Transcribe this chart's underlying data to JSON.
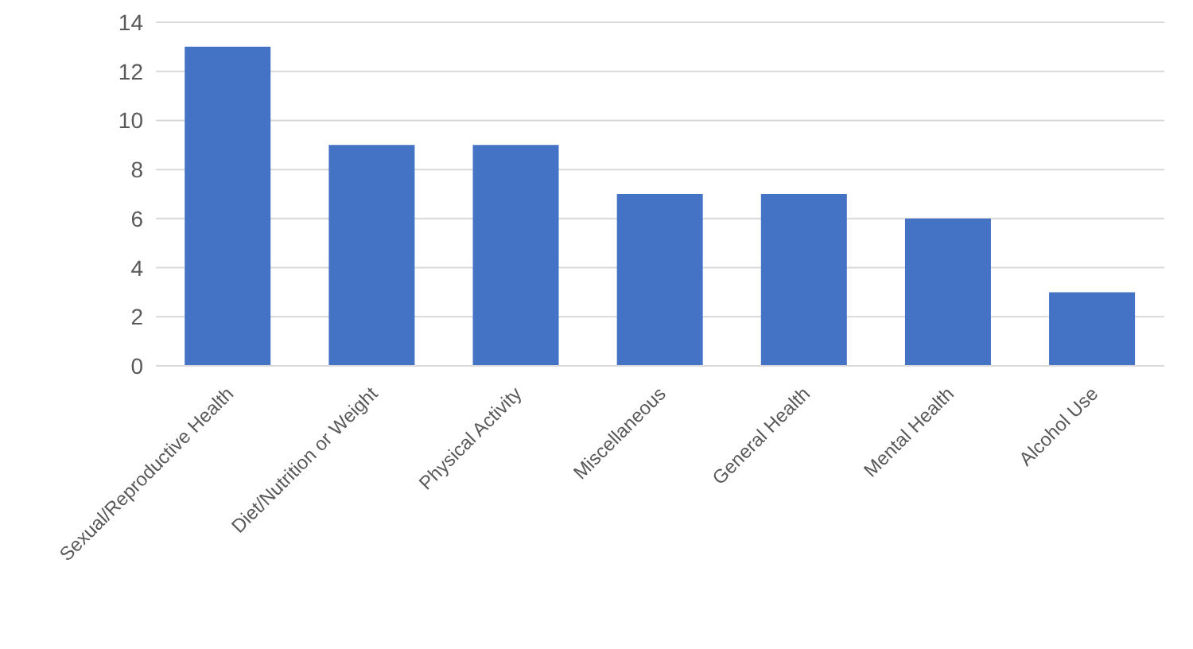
{
  "chart_data": {
    "type": "bar",
    "categories": [
      "Sexual/Reproductive Health",
      "Diet/Nutrition or Weight",
      "Physical Activity",
      "Miscellaneous",
      "General Health",
      "Mental Health",
      "Alcohol Use"
    ],
    "values": [
      13,
      9,
      9,
      7,
      7,
      6,
      3
    ],
    "color": "#4472c4",
    "ylim": [
      0,
      14
    ],
    "yticks": [
      0,
      2,
      4,
      6,
      8,
      10,
      12,
      14
    ],
    "grid": "y"
  }
}
